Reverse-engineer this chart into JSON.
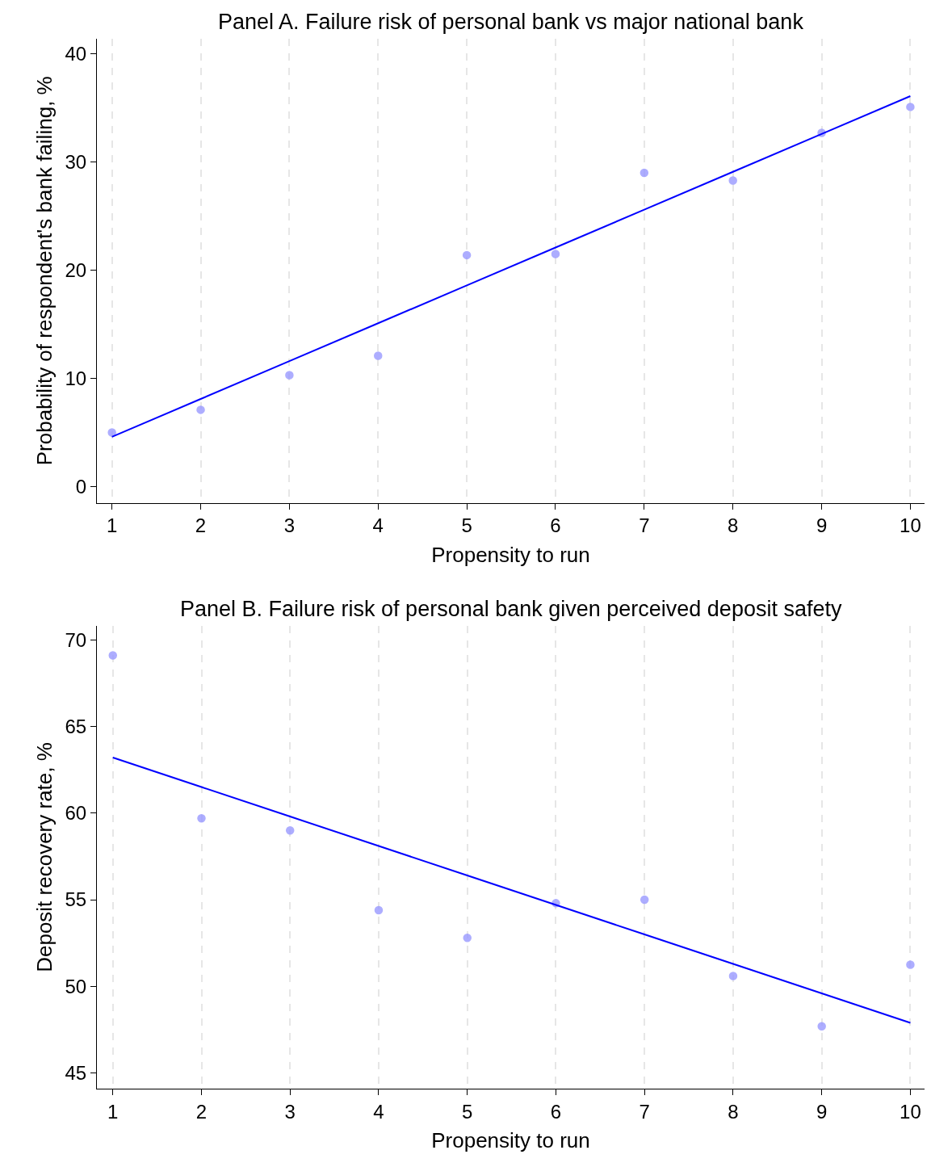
{
  "chart_data": [
    {
      "type": "scatter",
      "title": "Panel A. Failure risk of personal bank vs major national bank",
      "xlabel": "Propensity to run",
      "ylabel": "Probability of respondent's bank failing, %",
      "x": [
        1,
        2,
        3,
        4,
        5,
        6,
        7,
        8,
        9,
        10
      ],
      "xlim": [
        0.83,
        10.16
      ],
      "xticks": [
        1,
        2,
        3,
        4,
        5,
        6,
        7,
        8,
        9,
        10
      ],
      "ylim": [
        -1.5,
        41.4
      ],
      "yticks": [
        0,
        10,
        20,
        30,
        40
      ],
      "grid": "x",
      "marker": "circle",
      "series": [
        {
          "color": "#9999ff",
          "values": [
            5.0,
            7.1,
            10.3,
            12.1,
            21.4,
            21.5,
            29.0,
            28.3,
            32.7,
            35.1
          ]
        },
        {
          "type": "line",
          "color": "#0000ff",
          "values": [
            4.6,
            8.1,
            11.6,
            15.1,
            18.6,
            22.1,
            25.6,
            29.1,
            32.6,
            36.1
          ],
          "marker": "none",
          "line_style": "solid"
        }
      ]
    },
    {
      "type": "scatter",
      "title": "Panel B. Failure risk of personal bank given perceived deposit safety",
      "xlabel": "Propensity to run",
      "ylabel": "Deposit recovery rate, %",
      "x": [
        1,
        2,
        3,
        4,
        5,
        6,
        7,
        8,
        9,
        10
      ],
      "xlim": [
        0.82,
        10.16
      ],
      "xticks": [
        1,
        2,
        3,
        4,
        5,
        6,
        7,
        8,
        9,
        10
      ],
      "ylim": [
        44.1,
        70.8
      ],
      "yticks": [
        45,
        50,
        55,
        60,
        65,
        70
      ],
      "grid": "x",
      "marker": "circle",
      "series": [
        {
          "color": "#9999ff",
          "values": [
            69.1,
            59.7,
            59.0,
            54.4,
            52.8,
            54.8,
            55.0,
            50.6,
            47.7,
            51.25
          ]
        },
        {
          "type": "line",
          "color": "#0000ff",
          "values": [
            63.2,
            61.5,
            59.8,
            58.1,
            56.4,
            54.7,
            53.0,
            51.3,
            49.6,
            47.9
          ],
          "marker": "none",
          "line_style": "solid"
        }
      ]
    }
  ]
}
